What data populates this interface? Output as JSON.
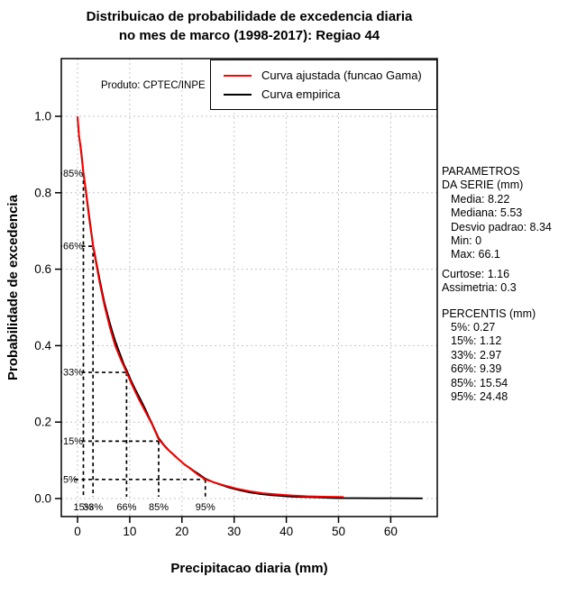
{
  "title": {
    "line1": "Distribuicao de probabilidade de excedencia diaria",
    "line2": "no mes de marco (1998-2017): Regiao 44"
  },
  "plot_note": "Produto: CPTEC/INPE",
  "legend": {
    "items": [
      {
        "label": "Curva ajustada (funcao Gama)",
        "color": "#ff0000"
      },
      {
        "label": "Curva empirica",
        "color": "#000000"
      }
    ]
  },
  "stats": {
    "header1": "PARAMETROS",
    "header2": "DA SERIE (mm)",
    "media": "Media: 8.22",
    "mediana": "Mediana: 5.53",
    "desvio": "Desvio padrao: 8.34",
    "min": "Min: 0",
    "max": "Max: 66.1",
    "curtose": "Curtose: 1.16",
    "assimetria": "Assimetria: 0.3"
  },
  "percentis": {
    "header": "PERCENTIS (mm)",
    "p5": "5%: 0.27",
    "p15": "15%: 1.12",
    "p33": "33%: 2.97",
    "p66": "66%: 9.39",
    "p85": "85%: 15.54",
    "p95": "95%: 24.48"
  },
  "chart_data": {
    "type": "line",
    "title": "Distribuicao de probabilidade de excedencia diaria no mes de marco (1998-2017): Regiao 44",
    "xlabel": "Precipitacao diaria (mm)",
    "ylabel": "Probabilidade de excedencia",
    "xlim": [
      -3,
      69
    ],
    "ylim": [
      -0.047,
      1.15
    ],
    "x_ticks": [
      0,
      10,
      20,
      30,
      40,
      50,
      60
    ],
    "y_ticks": [
      0,
      0.2,
      0.4,
      0.6,
      0.8,
      1
    ],
    "y_tick_labels": [
      "0.0",
      "0.2",
      "0.4",
      "0.6",
      "0.8",
      "1.0"
    ],
    "grid": true,
    "grid_color": "#c6c6c6",
    "legend_position": "top-right",
    "series": [
      {
        "name": "Curva empirica",
        "color": "#000000",
        "points": [
          [
            0,
            0.995
          ],
          [
            0.3,
            0.948
          ],
          [
            0.7,
            0.908
          ],
          [
            1.12,
            0.853
          ],
          [
            1.6,
            0.806
          ],
          [
            2.2,
            0.742
          ],
          [
            2.97,
            0.663
          ],
          [
            3.3,
            0.64
          ],
          [
            3.6,
            0.618
          ],
          [
            4.3,
            0.568
          ],
          [
            4.8,
            0.535
          ],
          [
            5.2,
            0.51
          ],
          [
            5.8,
            0.478
          ],
          [
            6.2,
            0.458
          ],
          [
            6.8,
            0.43
          ],
          [
            7.2,
            0.413
          ],
          [
            7.8,
            0.39
          ],
          [
            8.3,
            0.372
          ],
          [
            8.9,
            0.35
          ],
          [
            9.39,
            0.336
          ],
          [
            10.2,
            0.31
          ],
          [
            11,
            0.287
          ],
          [
            11.8,
            0.266
          ],
          [
            12.4,
            0.25
          ],
          [
            13,
            0.233
          ],
          [
            13.6,
            0.215
          ],
          [
            14.2,
            0.198
          ],
          [
            14.9,
            0.177
          ],
          [
            15.54,
            0.158
          ],
          [
            16.5,
            0.141
          ],
          [
            17.5,
            0.126
          ],
          [
            18.5,
            0.114
          ],
          [
            19.5,
            0.101
          ],
          [
            20.5,
            0.089
          ],
          [
            21.5,
            0.08
          ],
          [
            22.2,
            0.073
          ],
          [
            23,
            0.066
          ],
          [
            24.48,
            0.052
          ],
          [
            26,
            0.043
          ],
          [
            27.5,
            0.036
          ],
          [
            29,
            0.029
          ],
          [
            31,
            0.022
          ],
          [
            33,
            0.016
          ],
          [
            35,
            0.012
          ],
          [
            37,
            0.009
          ],
          [
            39,
            0.007
          ],
          [
            41,
            0.005
          ],
          [
            43.5,
            0.004
          ],
          [
            46,
            0.003
          ],
          [
            48,
            0.002
          ],
          [
            50,
            0.001
          ],
          [
            53,
            0.001
          ],
          [
            57,
            0.0008
          ],
          [
            61,
            0.0006
          ],
          [
            66.1,
            0.0005
          ]
        ]
      },
      {
        "name": "Curva ajustada (funcao Gama)",
        "color": "#ff0000",
        "points": [
          [
            0,
            1.0
          ],
          [
            0.27,
            0.95
          ],
          [
            0.6,
            0.915
          ],
          [
            1.12,
            0.85
          ],
          [
            1.6,
            0.8
          ],
          [
            2.2,
            0.735
          ],
          [
            2.97,
            0.66
          ],
          [
            3.6,
            0.612
          ],
          [
            4.3,
            0.56
          ],
          [
            5.2,
            0.502
          ],
          [
            6.2,
            0.447
          ],
          [
            7.2,
            0.4
          ],
          [
            8.3,
            0.363
          ],
          [
            9.39,
            0.33
          ],
          [
            10.5,
            0.295
          ],
          [
            11.8,
            0.258
          ],
          [
            13,
            0.227
          ],
          [
            14.2,
            0.196
          ],
          [
            15.54,
            0.155
          ],
          [
            17,
            0.132
          ],
          [
            18.5,
            0.113
          ],
          [
            20,
            0.095
          ],
          [
            21.5,
            0.079
          ],
          [
            23,
            0.063
          ],
          [
            24.48,
            0.05
          ],
          [
            26.5,
            0.041
          ],
          [
            28.5,
            0.033
          ],
          [
            30.5,
            0.026
          ],
          [
            33,
            0.019
          ],
          [
            35.5,
            0.014
          ],
          [
            38,
            0.011
          ],
          [
            41,
            0.008
          ],
          [
            44,
            0.006
          ],
          [
            47,
            0.005
          ],
          [
            49,
            0.0045
          ],
          [
            51,
            0.004
          ]
        ]
      }
    ],
    "percentile_markers": [
      {
        "exceedance_label": "85%",
        "percentile_label": "15%",
        "y": 0.85,
        "x": 1.12
      },
      {
        "exceedance_label": "66%",
        "percentile_label": "33%",
        "y": 0.66,
        "x": 2.97
      },
      {
        "exceedance_label": "33%",
        "percentile_label": "66%",
        "y": 0.33,
        "x": 9.39
      },
      {
        "exceedance_label": "15%",
        "percentile_label": "85%",
        "y": 0.15,
        "x": 15.54
      },
      {
        "exceedance_label": "5%",
        "percentile_label": "95%",
        "y": 0.05,
        "x": 24.48
      }
    ],
    "series_stats": {
      "media": 8.22,
      "mediana": 5.53,
      "desvio_padrao": 8.34,
      "min": 0,
      "max": 66.1,
      "curtose": 1.16,
      "assimetria": 0.3,
      "percentis_mm": {
        "5": 0.27,
        "15": 1.12,
        "33": 2.97,
        "66": 9.39,
        "85": 15.54,
        "95": 24.48
      }
    }
  }
}
